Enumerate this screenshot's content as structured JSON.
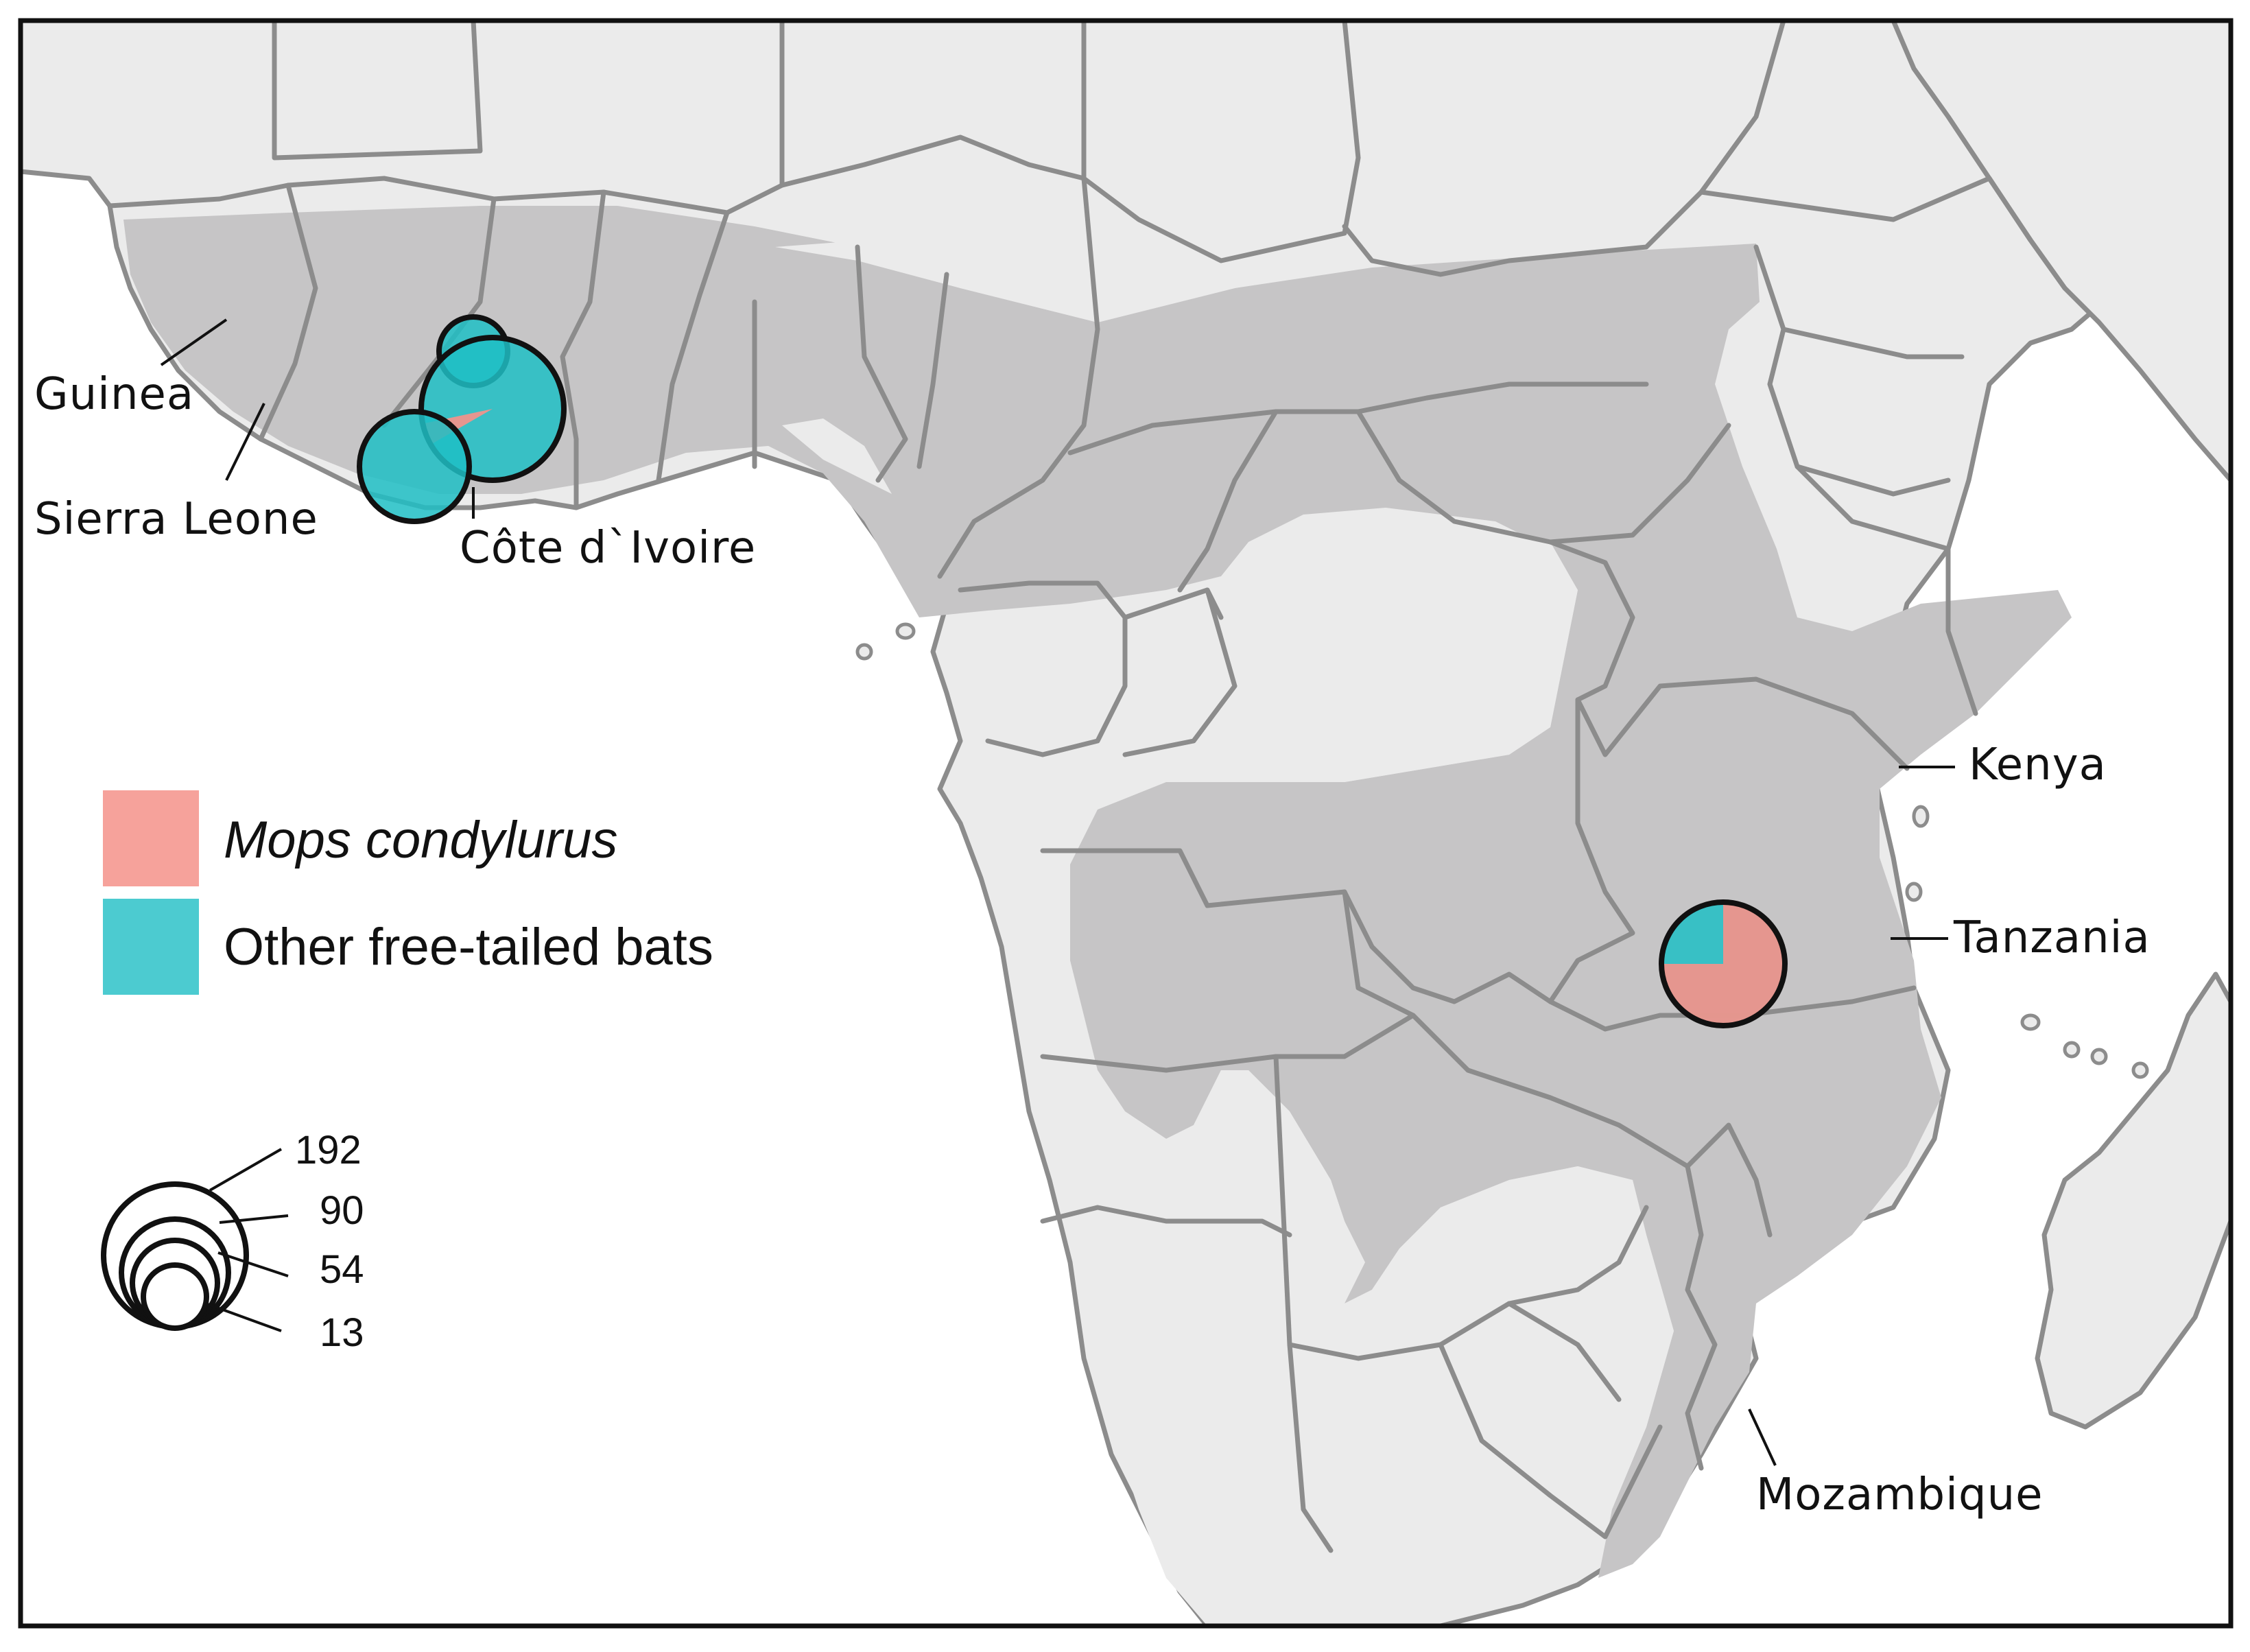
{
  "colors": {
    "mops_condylurus": "#f4928a",
    "other_free_tailed": "#1fbec4",
    "land": "#ebebeb",
    "range": "#c6c5c6",
    "border": "#8c8c8c",
    "sea": "#ffffff"
  },
  "labels": {
    "guinea": "Guinea",
    "sierra_leone": "Sierra Leone",
    "cote_divoire": "Côte d`Ivoire",
    "kenya": "Kenya",
    "tanzania": "Tanzania",
    "mozambique": "Mozambique"
  },
  "legend": {
    "mops": "Mops condylurus",
    "other": "Other free-tailed bats"
  },
  "size_legend": {
    "values": [
      "192",
      "90",
      "54",
      "13"
    ]
  },
  "sampling_sites": [
    {
      "site": "Guinea (north)",
      "mops_fraction": 0.0
    },
    {
      "site": "Côte d`Ivoire (large)",
      "mops_fraction": 0.05
    },
    {
      "site": "Guinea (south)",
      "mops_fraction": 0.0
    },
    {
      "site": "Tanzania",
      "mops_fraction": 0.75
    }
  ]
}
